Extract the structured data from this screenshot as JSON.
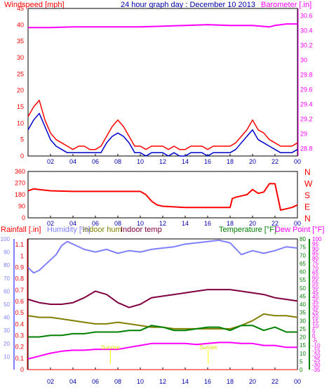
{
  "title": "24 hour graph day : December 10 2013",
  "colors": {
    "wind": "#ff0000",
    "gust_blue": "#0000cc",
    "barometer": "#ff00ff",
    "direction": "#ff0000",
    "humidity": "#8080ff",
    "indoor_hum": "#808000",
    "indoor_temp": "#800040",
    "temperature": "#008000",
    "dew_point": "#ff00ff",
    "rain": "#ff0000",
    "right_axis": "#ff0000",
    "axis_text": "#0000aa"
  },
  "x_ticks": [
    "02",
    "04",
    "06",
    "08",
    "10",
    "12",
    "14",
    "16",
    "18",
    "20",
    "22",
    "00"
  ],
  "panels": {
    "wind": {
      "left_label": "Windspeed [mph]",
      "right_label": "Barometer [.in]",
      "left_ticks": [
        "0",
        "5",
        "10",
        "15",
        "20",
        "25",
        "30",
        "35",
        "40",
        "45"
      ],
      "right_ticks": [
        "28.8",
        "29",
        "29.2",
        "29.4",
        "29.6",
        "29.8",
        "30",
        "30.2",
        "30.4",
        "30.6"
      ]
    },
    "direction": {
      "left_ticks": [
        "0",
        "90",
        "180",
        "270",
        "360"
      ],
      "right_ticks": [
        "N",
        "E",
        "S",
        "W",
        "N"
      ]
    },
    "temp": {
      "label_rain": "Rainfall [.in]",
      "label_humidity": "Humidity [%]",
      "label_indoor_hum": "Indoor hum",
      "label_indoor_temp": "Indoor temp",
      "label_temperature": "Temperature [°F]",
      "label_dew": "Dew Point [°F]",
      "rain_ticks": [
        "0",
        "0.1",
        "0.2",
        "0.3",
        "0.4",
        "0.5",
        "0.6",
        "0.7",
        "0.8",
        "0.9",
        "1",
        "1.1"
      ],
      "hum_ticks": [
        "10",
        "20",
        "30",
        "40",
        "50",
        "60",
        "70",
        "80",
        "90",
        "100"
      ],
      "temp_ticks": [
        "0",
        "5",
        "10",
        "15",
        "20",
        "25",
        "30",
        "35",
        "40",
        "45",
        "50",
        "55",
        "60",
        "65",
        "70",
        "75",
        "80"
      ],
      "dew_ticks": [
        "-35",
        "-30",
        "-25",
        "-20",
        "-15",
        "-10",
        "-5",
        "0",
        "5",
        "10",
        "15",
        "20",
        "25",
        "30",
        "35",
        "40",
        "45",
        "50",
        "55",
        "60",
        "65",
        "70",
        "75",
        "80",
        "85",
        "90",
        "95",
        "100"
      ],
      "sunrise_label": "Sunrise",
      "sunset_label": "Sunset"
    }
  },
  "chart_data": [
    {
      "type": "line",
      "xlabel": "",
      "x_range_hours": [
        0,
        24
      ],
      "series": [
        {
          "name": "Windspeed [mph]",
          "axis": "left",
          "ylim": [
            0,
            45
          ],
          "x": [
            0,
            0.5,
            1,
            1.5,
            2,
            2.5,
            3,
            3.5,
            4,
            4.5,
            5,
            5.5,
            6,
            6.5,
            7,
            7.5,
            8,
            8.5,
            9,
            9.5,
            10,
            10.5,
            11,
            11.5,
            12,
            12.5,
            13,
            13.5,
            14,
            14.5,
            15,
            15.5,
            16,
            16.5,
            17,
            17.5,
            18,
            18.5,
            19,
            19.5,
            20,
            20.5,
            21,
            21.5,
            22,
            22.5,
            23,
            23.5,
            24
          ],
          "values": [
            12,
            15,
            17,
            11,
            7,
            5,
            4,
            3,
            2,
            3,
            3,
            2,
            2,
            3,
            6,
            9,
            11,
            9,
            6,
            3,
            3,
            2,
            3,
            3,
            3,
            2,
            3,
            2,
            2,
            3,
            3,
            3,
            2,
            3,
            3,
            3,
            3,
            4,
            6,
            8,
            11,
            8,
            7,
            5,
            4,
            3,
            3,
            3,
            4
          ]
        },
        {
          "name": "",
          "axis": "left",
          "ylim": [
            0,
            45
          ],
          "x": [
            0,
            0.5,
            1,
            1.5,
            2,
            2.5,
            3,
            3.5,
            4,
            4.5,
            5,
            5.5,
            6,
            6.5,
            7,
            7.5,
            8,
            8.5,
            9,
            9.5,
            10,
            10.5,
            11,
            11.5,
            12,
            12.5,
            13,
            13.5,
            14,
            14.5,
            15,
            15.5,
            16,
            16.5,
            17,
            17.5,
            18,
            18.5,
            19,
            19.5,
            20,
            20.5,
            21,
            21.5,
            22,
            22.5,
            23,
            23.5,
            24
          ],
          "values": [
            8,
            11,
            13,
            9,
            5,
            3,
            2,
            1,
            1,
            1,
            1,
            1,
            1,
            1,
            4,
            6,
            7,
            6,
            4,
            1,
            1,
            0,
            1,
            1,
            1,
            0,
            1,
            0,
            0,
            1,
            1,
            1,
            0,
            1,
            1,
            1,
            1,
            2,
            4,
            6,
            8,
            5,
            4,
            3,
            2,
            1,
            1,
            1,
            2
          ]
        },
        {
          "name": "Barometer [.in]",
          "axis": "right",
          "ylim": [
            28.7,
            30.7
          ],
          "x": [
            0,
            2,
            4,
            6,
            8,
            10,
            12,
            14,
            16,
            18,
            20,
            21.5,
            22,
            23,
            24
          ],
          "values": [
            30.44,
            30.44,
            30.45,
            30.45,
            30.45,
            30.45,
            30.46,
            30.47,
            30.48,
            30.47,
            30.47,
            30.45,
            30.47,
            30.49,
            30.49
          ]
        }
      ]
    },
    {
      "type": "line",
      "xlabel": "",
      "ylim": [
        0,
        360
      ],
      "series": [
        {
          "name": "",
          "x": [
            0,
            0.5,
            1,
            2,
            4,
            6,
            8,
            10,
            10.5,
            11,
            11.5,
            12,
            14,
            16,
            18,
            18.2,
            18.5,
            19,
            19.5,
            20,
            20.5,
            21,
            21.5,
            21.55,
            22,
            22.5,
            23,
            23.5,
            24
          ],
          "values": [
            210,
            225,
            220,
            210,
            205,
            205,
            205,
            205,
            180,
            130,
            100,
            90,
            80,
            80,
            80,
            150,
            160,
            170,
            180,
            220,
            190,
            200,
            265,
            265,
            265,
            60,
            70,
            80,
            100
          ]
        }
      ]
    },
    {
      "type": "line",
      "xlabel": "",
      "x_range_hours": [
        0,
        24
      ],
      "series": [
        {
          "name": "Humidity [%]",
          "axis": "humidity",
          "ylim": [
            0,
            100
          ],
          "x": [
            0,
            0.5,
            1,
            1.5,
            2,
            2.5,
            3,
            3.5,
            4,
            5,
            6,
            7,
            8,
            9,
            10,
            11,
            12,
            13,
            14,
            15,
            16,
            17,
            18,
            19,
            20,
            21,
            22,
            23,
            24
          ],
          "values": [
            78,
            74,
            76,
            80,
            84,
            88,
            95,
            98,
            96,
            92,
            90,
            92,
            89,
            91,
            90,
            92,
            93,
            94,
            96,
            97,
            98,
            99,
            97,
            88,
            91,
            89,
            91,
            94,
            93
          ]
        },
        {
          "name": "Indoor hum",
          "axis": "temperature",
          "ylim": [
            0,
            80
          ],
          "x": [
            0,
            1,
            2,
            3,
            4,
            5,
            6,
            7,
            8,
            9,
            10,
            11,
            12,
            13,
            14,
            15,
            16,
            17,
            18,
            19,
            20,
            21,
            22,
            23,
            24
          ],
          "values": [
            33,
            32,
            32,
            31,
            30,
            29,
            28,
            28,
            29,
            28,
            27,
            26,
            26,
            25,
            25,
            25,
            25,
            25,
            25,
            27,
            30,
            34,
            33,
            33,
            32
          ]
        },
        {
          "name": "Indoor temp",
          "axis": "temperature",
          "ylim": [
            0,
            80
          ],
          "x": [
            0,
            1,
            2,
            3,
            4,
            5,
            6,
            7,
            8,
            9,
            10,
            11,
            12,
            13,
            14,
            15,
            16,
            17,
            18,
            19,
            20,
            21,
            22,
            23,
            24
          ],
          "values": [
            43,
            41,
            40,
            40,
            41,
            44,
            48,
            46,
            41,
            38,
            40,
            44,
            45,
            46,
            47,
            48,
            49,
            49,
            49,
            48,
            47,
            46,
            44,
            43,
            42
          ]
        },
        {
          "name": "Temperature [°F]",
          "axis": "temperature",
          "ylim": [
            0,
            80
          ],
          "x": [
            0,
            1,
            2,
            3,
            4,
            5,
            6,
            7,
            8,
            9,
            10,
            11,
            12,
            13,
            14,
            15,
            16,
            17,
            18,
            19,
            20,
            21,
            22,
            23,
            24
          ],
          "values": [
            20,
            20,
            21,
            21,
            22,
            22,
            23,
            23,
            23,
            24,
            24,
            27,
            26,
            24,
            24,
            25,
            26,
            26,
            24,
            27,
            27,
            24,
            26,
            23,
            23
          ]
        },
        {
          "name": "Dew Point [°F]",
          "axis": "dew",
          "ylim": [
            -35,
            100
          ],
          "x": [
            0,
            1,
            2,
            3,
            4,
            5,
            6,
            7,
            8,
            9,
            10,
            11,
            12,
            13,
            14,
            15,
            16,
            17,
            18,
            19,
            20,
            21,
            22,
            23,
            24
          ],
          "values": [
            -24,
            -21,
            -18,
            -16,
            -15,
            -15,
            -14,
            -14,
            -14,
            -12,
            -10,
            -8,
            -8,
            -8,
            -8,
            -9,
            -8,
            -7,
            -7,
            -8,
            -8,
            -10,
            -10,
            -12,
            -12
          ]
        },
        {
          "name": "Rainfall [.in]",
          "axis": "rain",
          "ylim": [
            0,
            1.15
          ],
          "x": [
            0,
            24
          ],
          "values": [
            0,
            0
          ]
        }
      ],
      "annotations": [
        {
          "label": "Sunrise",
          "x": 7.33
        },
        {
          "label": "Sunset",
          "x": 16.05
        }
      ]
    }
  ]
}
